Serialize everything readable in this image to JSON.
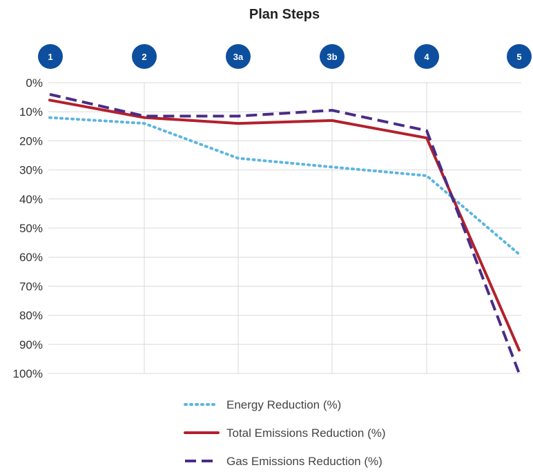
{
  "chart_data": {
    "type": "line",
    "title": "Plan Steps",
    "categories": [
      "1",
      "2",
      "3a",
      "3b",
      "4",
      "5"
    ],
    "y_tick_labels": [
      "0%",
      "10%",
      "20%",
      "30%",
      "40%",
      "50%",
      "60%",
      "70%",
      "80%",
      "90%",
      "100%"
    ],
    "ylim": [
      0,
      100
    ],
    "y_axis_reversed": true,
    "grid": true,
    "legend_position": "bottom",
    "step_badge_color": "#0d4f9e",
    "series": [
      {
        "name": "Energy Reduction (%)",
        "values": [
          12,
          14,
          26,
          29,
          32,
          59
        ],
        "color": "#5bb5e1",
        "style": "dotted"
      },
      {
        "name": "Total Emissions Reduction (%)",
        "values": [
          6,
          12,
          14,
          13,
          19,
          92
        ],
        "color": "#b3202d",
        "style": "solid"
      },
      {
        "name": "Gas Emissions Reduction (%)",
        "values": [
          4,
          11.5,
          11.5,
          9.5,
          16.5,
          100
        ],
        "color": "#4a2c86",
        "style": "dashed"
      }
    ]
  }
}
